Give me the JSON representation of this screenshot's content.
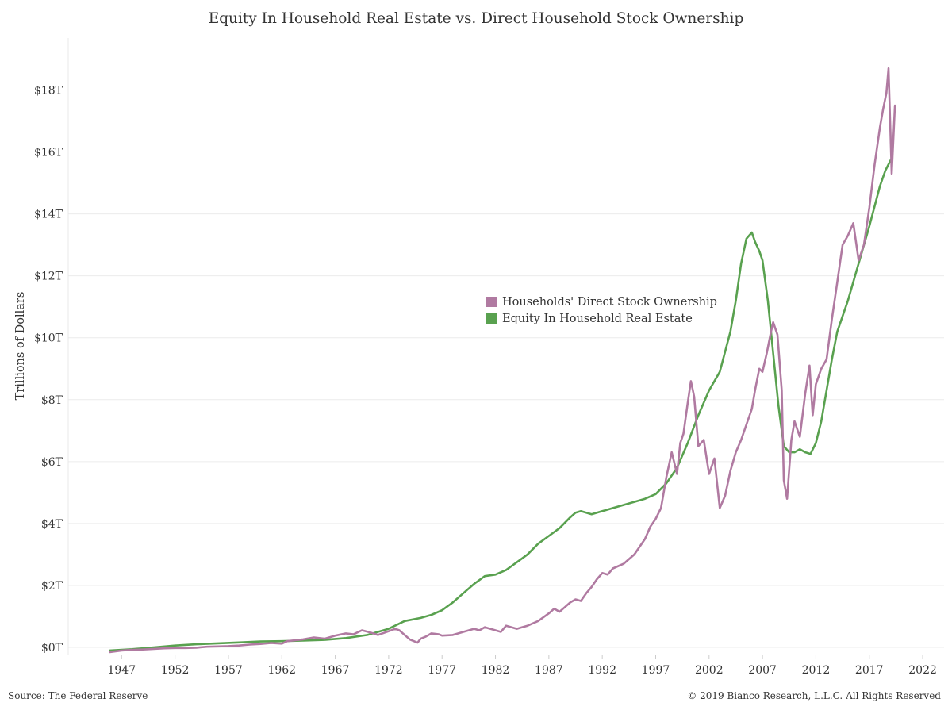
{
  "chart_data": {
    "type": "line",
    "title": "Equity In Household Real Estate vs. Direct Household Stock Ownership",
    "xlabel": "",
    "ylabel": "Trillions of Dollars",
    "xlim": [
      1942,
      2024
    ],
    "ylim": [
      0,
      20
    ],
    "x_ticks": [
      1947,
      1952,
      1957,
      1962,
      1967,
      1972,
      1977,
      1982,
      1987,
      1992,
      1997,
      2002,
      2007,
      2012,
      2017,
      2022
    ],
    "y_ticks": [
      0,
      2,
      4,
      6,
      8,
      10,
      12,
      14,
      16,
      18
    ],
    "y_tick_labels": [
      "$0T",
      "$2T",
      "$4T",
      "$6T",
      "$8T",
      "$10T",
      "$12T",
      "$14T",
      "$16T",
      "$18T"
    ],
    "grid": "horizontal",
    "legend_position": "center-right",
    "series": [
      {
        "name": "Households' Direct Stock Ownership",
        "color": "#b07aa1",
        "x": [
          1945.9,
          1947,
          1948,
          1949,
          1950,
          1951,
          1952,
          1953,
          1954,
          1955,
          1956,
          1957,
          1958,
          1959,
          1960,
          1961,
          1962,
          1962.5,
          1963,
          1964,
          1965,
          1966,
          1967,
          1968,
          1968.7,
          1969.5,
          1970.3,
          1971,
          1972,
          1972.6,
          1973,
          1973.5,
          1974,
          1974.7,
          1975,
          1975.5,
          1976,
          1976.7,
          1977,
          1978,
          1979,
          1980,
          1980.5,
          1981,
          1982,
          1982.5,
          1983,
          1984,
          1984.5,
          1985,
          1986,
          1987,
          1987.5,
          1988,
          1988.5,
          1989,
          1989.5,
          1990,
          1990.5,
          1991,
          1991.5,
          1992,
          1992.5,
          1993,
          1994,
          1995,
          1996,
          1996.5,
          1997,
          1997.5,
          1998,
          1998.5,
          1999,
          1999.3,
          1999.6,
          2000,
          2000.3,
          2000.6,
          2001,
          2001.5,
          2002,
          2002.5,
          2003,
          2003.5,
          2004,
          2004.5,
          2005,
          2005.5,
          2006,
          2006.3,
          2006.7,
          2007,
          2007.4,
          2007.8,
          2008,
          2008.4,
          2008.8,
          2009,
          2009.3,
          2009.7,
          2010,
          2010.5,
          2011,
          2011.4,
          2011.7,
          2012,
          2012.5,
          2013,
          2013.5,
          2014,
          2014.5,
          2015,
          2015.5,
          2016,
          2016.5,
          2017,
          2017.5,
          2018,
          2018.3,
          2018.6,
          2018.8,
          2019.1
        ],
        "values": [
          -0.15,
          -0.1,
          -0.08,
          -0.07,
          -0.05,
          -0.03,
          -0.02,
          -0.02,
          -0.01,
          0.02,
          0.03,
          0.04,
          0.06,
          0.09,
          0.11,
          0.14,
          0.12,
          0.2,
          0.22,
          0.26,
          0.32,
          0.28,
          0.38,
          0.45,
          0.42,
          0.55,
          0.48,
          0.4,
          0.52,
          0.6,
          0.55,
          0.4,
          0.25,
          0.15,
          0.28,
          0.35,
          0.45,
          0.42,
          0.38,
          0.4,
          0.5,
          0.6,
          0.55,
          0.65,
          0.55,
          0.5,
          0.7,
          0.6,
          0.65,
          0.7,
          0.85,
          1.1,
          1.25,
          1.15,
          1.3,
          1.45,
          1.55,
          1.5,
          1.75,
          1.95,
          2.2,
          2.4,
          2.35,
          2.55,
          2.7,
          3.0,
          3.5,
          3.9,
          4.15,
          4.5,
          5.5,
          6.3,
          5.6,
          6.6,
          6.9,
          7.9,
          8.6,
          8.1,
          6.5,
          6.7,
          5.6,
          6.1,
          4.5,
          4.9,
          5.7,
          6.3,
          6.7,
          7.2,
          7.7,
          8.3,
          9.0,
          8.9,
          9.5,
          10.2,
          10.5,
          10.1,
          8.3,
          5.4,
          4.8,
          6.7,
          7.3,
          6.8,
          8.2,
          9.1,
          7.5,
          8.5,
          9.0,
          9.3,
          10.6,
          11.8,
          13.0,
          13.3,
          13.7,
          12.5,
          13.0,
          14.2,
          15.6,
          16.8,
          17.4,
          17.9,
          18.7,
          15.3
        ],
        "x_end": 2019.4,
        "value_end": 17.5
      },
      {
        "name": "Equity In Household Real Estate",
        "color": "#59a14f",
        "x": [
          1945.9,
          1948,
          1950,
          1952,
          1954,
          1956,
          1958,
          1960,
          1962,
          1964,
          1966,
          1968,
          1970,
          1972,
          1973.5,
          1975,
          1976,
          1977,
          1978,
          1979,
          1980,
          1981,
          1982,
          1983,
          1984,
          1985,
          1986,
          1987,
          1988,
          1989,
          1989.5,
          1990,
          1991,
          1992,
          1993,
          1994,
          1995,
          1996,
          1997,
          1998,
          1999,
          2000,
          2001,
          2002,
          2003,
          2004,
          2004.5,
          2005,
          2005.5,
          2006,
          2006.3,
          2006.7,
          2007,
          2007.5,
          2008,
          2008.5,
          2009,
          2009.5,
          2010,
          2010.5,
          2011,
          2011.5,
          2012,
          2012.5,
          2013,
          2013.5,
          2014,
          2015,
          2016,
          2017,
          2018,
          2018.5,
          2019.1
        ],
        "values": [
          -0.1,
          -0.06,
          0.0,
          0.06,
          0.1,
          0.13,
          0.16,
          0.19,
          0.2,
          0.22,
          0.24,
          0.3,
          0.4,
          0.6,
          0.85,
          0.95,
          1.05,
          1.2,
          1.45,
          1.75,
          2.05,
          2.3,
          2.35,
          2.5,
          2.75,
          3.0,
          3.35,
          3.6,
          3.85,
          4.2,
          4.35,
          4.4,
          4.3,
          4.4,
          4.5,
          4.6,
          4.7,
          4.8,
          4.95,
          5.3,
          5.8,
          6.6,
          7.5,
          8.3,
          8.9,
          10.2,
          11.2,
          12.4,
          13.2,
          13.4,
          13.1,
          12.8,
          12.5,
          11.2,
          9.5,
          7.8,
          6.5,
          6.3,
          6.3,
          6.4,
          6.3,
          6.25,
          6.6,
          7.3,
          8.3,
          9.3,
          10.2,
          11.2,
          12.4,
          13.6,
          14.9,
          15.4,
          15.8
        ]
      }
    ]
  },
  "footer": {
    "source": "Source: The Federal Reserve",
    "copyright": "© 2019 Bianco Research, L.L.C. All Rights Reserved"
  }
}
